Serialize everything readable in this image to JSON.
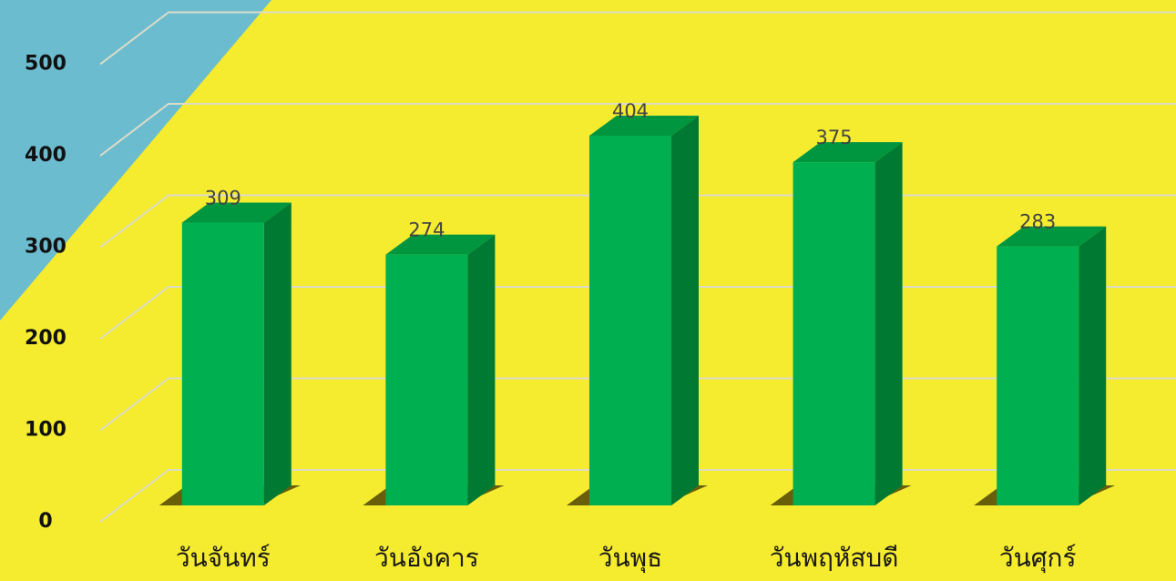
{
  "chart_data": {
    "type": "bar3d",
    "categories": [
      "วันจันทร์",
      "วันอังคาร",
      "วันพุธ",
      "วันพฤหัสบดี",
      "วันศุกร์"
    ],
    "values": [
      309,
      274,
      404,
      375,
      283
    ],
    "color": "#00b050",
    "ylim": [
      0,
      500
    ],
    "yticks": [
      0,
      100,
      200,
      300,
      400,
      500
    ],
    "grid": true
  }
}
